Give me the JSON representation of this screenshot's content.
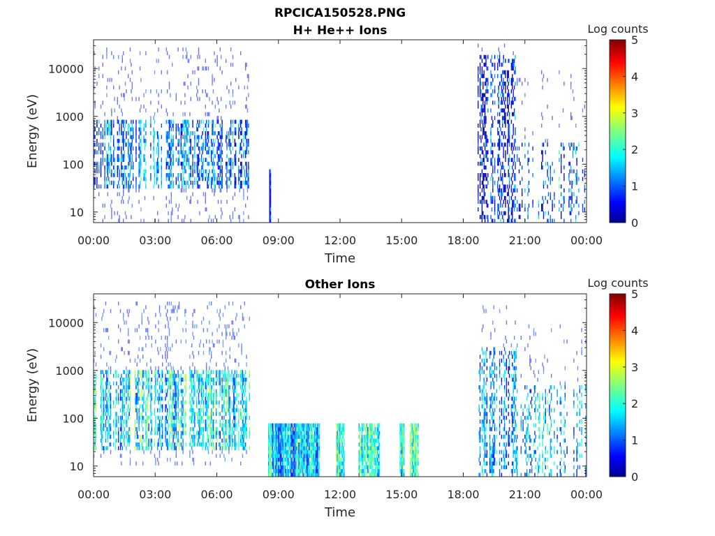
{
  "figure": {
    "filename_title": "RPCICA150528.PNG"
  },
  "colors": {
    "axis": "#262626",
    "colormap": [
      "#00008f",
      "#0000ff",
      "#0080ff",
      "#00ffff",
      "#80ff80",
      "#ffff00",
      "#ff8000",
      "#ff0000",
      "#800000"
    ]
  },
  "chart_data": [
    {
      "type": "heatmap",
      "title": "H+ He++ Ions",
      "xlabel": "Time",
      "ylabel": "Energy (eV)",
      "yscale": "log",
      "ylim": [
        6,
        40000
      ],
      "xlim": [
        "00:00",
        "24:00"
      ],
      "x_ticks": [
        "00:00",
        "03:00",
        "06:00",
        "09:00",
        "12:00",
        "15:00",
        "18:00",
        "21:00",
        "00:00"
      ],
      "y_ticks": [
        "10",
        "100",
        "1000",
        "10000"
      ],
      "colorbar": {
        "label": "Log counts",
        "range": [
          0,
          5
        ],
        "ticks": [
          "0",
          "1",
          "2",
          "3",
          "4",
          "5"
        ]
      },
      "segments": [
        {
          "start_hour": 0.0,
          "end_hour": 7.6,
          "emin": 6,
          "emax": 30000,
          "core_emin": 30,
          "core_emax": 800,
          "level": 1.2,
          "density": 0.55
        },
        {
          "start_hour": 8.55,
          "end_hour": 8.62,
          "emin": 6,
          "emax": 80,
          "core_emin": 6,
          "core_emax": 80,
          "level": 0.6,
          "density": 1.0
        },
        {
          "start_hour": 18.7,
          "end_hour": 20.6,
          "emin": 6,
          "emax": 35000,
          "core_emin": 6,
          "core_emax": 20000,
          "level": 0.6,
          "density": 0.45
        },
        {
          "start_hour": 20.6,
          "end_hour": 24.0,
          "emin": 6,
          "emax": 10000,
          "core_emin": 6,
          "core_emax": 300,
          "level": 1.1,
          "density": 0.3
        }
      ]
    },
    {
      "type": "heatmap",
      "title": "Other Ions",
      "xlabel": "Time",
      "ylabel": "Energy (eV)",
      "yscale": "log",
      "ylim": [
        6,
        40000
      ],
      "xlim": [
        "00:00",
        "24:00"
      ],
      "x_ticks": [
        "00:00",
        "03:00",
        "06:00",
        "09:00",
        "12:00",
        "15:00",
        "18:00",
        "21:00",
        "00:00"
      ],
      "y_ticks": [
        "10",
        "100",
        "1000",
        "10000"
      ],
      "colorbar": {
        "label": "Log counts",
        "range": [
          0,
          5
        ],
        "ticks": [
          "0",
          "1",
          "2",
          "3",
          "4",
          "5"
        ]
      },
      "segments": [
        {
          "start_hour": 0.0,
          "end_hour": 7.6,
          "emin": 10,
          "emax": 30000,
          "core_emin": 20,
          "core_emax": 1000,
          "level": 1.8,
          "density": 0.6
        },
        {
          "start_hour": 8.5,
          "end_hour": 11.0,
          "emin": 6,
          "emax": 80,
          "core_emin": 6,
          "core_emax": 80,
          "level": 1.6,
          "density": 0.95
        },
        {
          "start_hour": 11.8,
          "end_hour": 12.2,
          "emin": 6,
          "emax": 80,
          "core_emin": 6,
          "core_emax": 80,
          "level": 2.3,
          "density": 0.9
        },
        {
          "start_hour": 12.9,
          "end_hour": 13.9,
          "emin": 6,
          "emax": 80,
          "core_emin": 6,
          "core_emax": 80,
          "level": 2.0,
          "density": 0.85
        },
        {
          "start_hour": 14.9,
          "end_hour": 15.1,
          "emin": 6,
          "emax": 80,
          "core_emin": 6,
          "core_emax": 80,
          "level": 2.4,
          "density": 0.9
        },
        {
          "start_hour": 15.4,
          "end_hour": 15.8,
          "emin": 6,
          "emax": 80,
          "core_emin": 6,
          "core_emax": 80,
          "level": 2.2,
          "density": 0.9
        },
        {
          "start_hour": 18.7,
          "end_hour": 20.6,
          "emin": 6,
          "emax": 25000,
          "core_emin": 6,
          "core_emax": 3000,
          "level": 1.2,
          "density": 0.45
        },
        {
          "start_hour": 20.6,
          "end_hour": 24.0,
          "emin": 6,
          "emax": 10000,
          "core_emin": 6,
          "core_emax": 500,
          "level": 1.4,
          "density": 0.35
        }
      ]
    }
  ]
}
